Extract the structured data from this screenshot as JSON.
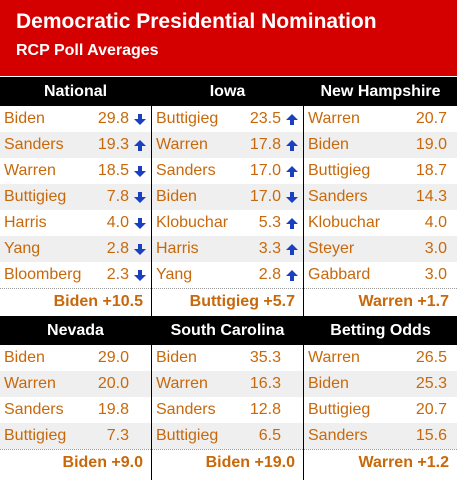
{
  "header": {
    "title": "Democratic Presidential Nomination",
    "subtitle": "RCP Poll Averages"
  },
  "colors": {
    "banner": "#d40000",
    "header_bg": "#000000",
    "text": "#c8680a",
    "arrow": "#1a3fbf"
  },
  "panels": [
    {
      "title": "National",
      "rows": [
        {
          "name": "Biden",
          "value": "29.8",
          "trend": "down"
        },
        {
          "name": "Sanders",
          "value": "19.3",
          "trend": "up"
        },
        {
          "name": "Warren",
          "value": "18.5",
          "trend": "down"
        },
        {
          "name": "Buttigieg",
          "value": "7.8",
          "trend": "down"
        },
        {
          "name": "Harris",
          "value": "4.0",
          "trend": "down"
        },
        {
          "name": "Yang",
          "value": "2.8",
          "trend": "down"
        },
        {
          "name": "Bloomberg",
          "value": "2.3",
          "trend": "down"
        }
      ],
      "spread": "Biden +10.5"
    },
    {
      "title": "Iowa",
      "rows": [
        {
          "name": "Buttigieg",
          "value": "23.5",
          "trend": "up"
        },
        {
          "name": "Warren",
          "value": "17.8",
          "trend": "up"
        },
        {
          "name": "Sanders",
          "value": "17.0",
          "trend": "up"
        },
        {
          "name": "Biden",
          "value": "17.0",
          "trend": "down"
        },
        {
          "name": "Klobuchar",
          "value": "5.3",
          "trend": "up"
        },
        {
          "name": "Harris",
          "value": "3.3",
          "trend": "up"
        },
        {
          "name": "Yang",
          "value": "2.8",
          "trend": "up"
        }
      ],
      "spread": "Buttigieg +5.7"
    },
    {
      "title": "New Hampshire",
      "rows": [
        {
          "name": "Warren",
          "value": "20.7"
        },
        {
          "name": "Biden",
          "value": "19.0"
        },
        {
          "name": "Buttigieg",
          "value": "18.7"
        },
        {
          "name": "Sanders",
          "value": "14.3"
        },
        {
          "name": "Klobuchar",
          "value": "4.0"
        },
        {
          "name": "Steyer",
          "value": "3.0"
        },
        {
          "name": "Gabbard",
          "value": "3.0"
        }
      ],
      "spread": "Warren +1.7"
    },
    {
      "title": "Nevada",
      "rows": [
        {
          "name": "Biden",
          "value": "29.0"
        },
        {
          "name": "Warren",
          "value": "20.0"
        },
        {
          "name": "Sanders",
          "value": "19.8"
        },
        {
          "name": "Buttigieg",
          "value": "7.3"
        }
      ],
      "spread": "Biden +9.0"
    },
    {
      "title": "South Carolina",
      "rows": [
        {
          "name": "Biden",
          "value": "35.3"
        },
        {
          "name": "Warren",
          "value": "16.3"
        },
        {
          "name": "Sanders",
          "value": "12.8"
        },
        {
          "name": "Buttigieg",
          "value": "6.5"
        }
      ],
      "spread": "Biden +19.0"
    },
    {
      "title": "Betting Odds",
      "rows": [
        {
          "name": "Warren",
          "value": "26.5"
        },
        {
          "name": "Biden",
          "value": "25.3"
        },
        {
          "name": "Buttigieg",
          "value": "20.7"
        },
        {
          "name": "Sanders",
          "value": "15.6"
        }
      ],
      "spread": "Warren +1.2"
    }
  ]
}
